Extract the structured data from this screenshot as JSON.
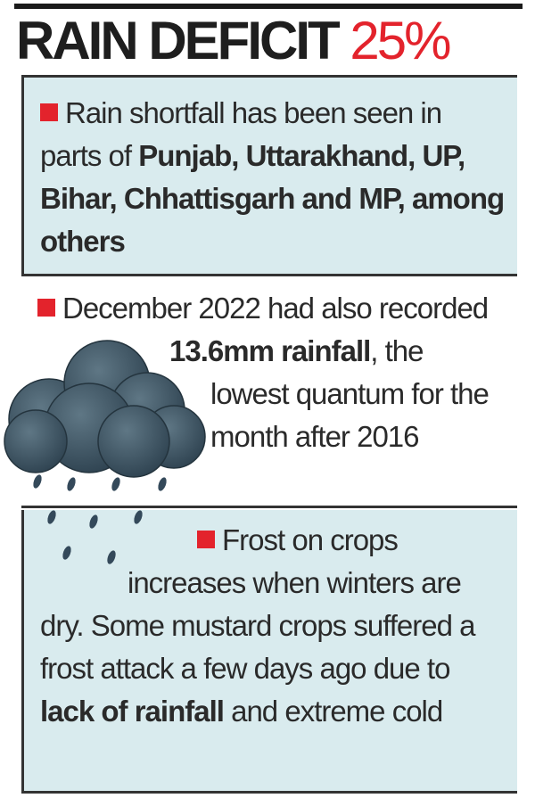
{
  "header": {
    "title": "RAIN DEFICIT",
    "figure": "25%"
  },
  "points": [
    {
      "runs": [
        {
          "text": "Rain shortfall has been seen in parts of ",
          "bold": false
        },
        {
          "text": "Punjab, Uttarakhand, UP, Bihar, Chhattisgarh and MP, among others",
          "bold": true
        }
      ]
    },
    {
      "runs": [
        {
          "text": "December 2022 had also recorded ",
          "bold": false
        },
        {
          "text": "13.6mm rainfall",
          "bold": true
        },
        {
          "text": ", the lowest quantum for the month after 2016",
          "bold": false
        }
      ]
    },
    {
      "runs": [
        {
          "text": "Frost on crops increases when winters are dry. Some mustard crops suffered a frost attack a few days ago due to ",
          "bold": false
        },
        {
          "text": "lack of rainfall",
          "bold": true
        },
        {
          "text": " and extreme cold",
          "bold": false
        }
      ]
    }
  ]
}
